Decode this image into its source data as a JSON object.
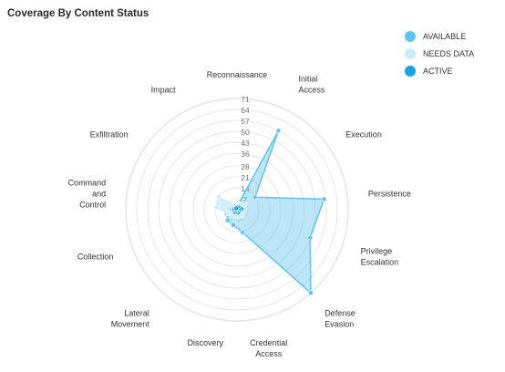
{
  "colors": {
    "available": "#5fc3ef",
    "needs_data": "#c9ecfb",
    "active": "#1aa3e3",
    "ring": "#e6e6e6"
  },
  "chart_data": {
    "type": "radar",
    "title": "Coverage By Content Status",
    "axes": [
      "Reconnaissance",
      "Initial\nAccess",
      "Execution",
      "Persistence",
      "Privilege\nEscalation",
      "Defense\nEvasion",
      "Credential\nAccess",
      "Discovery",
      "Lateral\nMovement",
      "Collection",
      "Command\nand\nControl",
      "Exfiltration",
      "Impact"
    ],
    "ticks": [
      7,
      14,
      21,
      28,
      36,
      43,
      50,
      57,
      64,
      71
    ],
    "rmax": 71,
    "legend_position": "top-right",
    "series": [
      {
        "name": "AVAILABLE",
        "key": "available",
        "values": [
          2,
          57,
          14,
          56,
          50,
          71,
          15,
          10,
          9,
          7,
          4,
          3,
          1
        ]
      },
      {
        "name": "NEEDS DATA",
        "key": "needs_data",
        "values": [
          2,
          4,
          6,
          5,
          3,
          5,
          4,
          4,
          5,
          6,
          13,
          14,
          3
        ]
      },
      {
        "name": "ACTIVE",
        "key": "active",
        "values": [
          1,
          2,
          2,
          3,
          2,
          2,
          2,
          1,
          2,
          1,
          2,
          1,
          1
        ]
      }
    ]
  }
}
